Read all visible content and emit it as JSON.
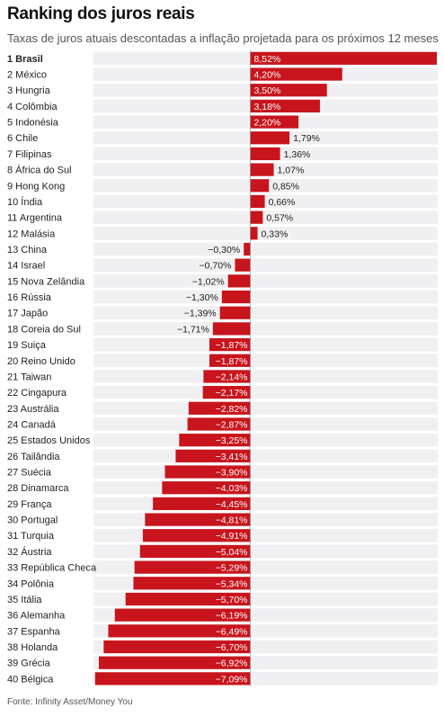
{
  "title": "Ranking dos juros reais",
  "subtitle": "Taxas de juros atuais descontadas a inflação projetada para os próximos 12 meses",
  "source": "Fonte: Infinity Asset/Money You",
  "colors": {
    "bar": "#c8141c",
    "row_stripe": "#f0f0f2",
    "zero_line": "#888888"
  },
  "chart_data": {
    "type": "bar",
    "orientation": "horizontal",
    "title": "Ranking dos juros reais",
    "subtitle": "Taxas de juros atuais descontadas a inflação projetada para os próximos 12 meses",
    "unit": "%",
    "xlim": [
      -7.09,
      8.52
    ],
    "grid": false,
    "categories": [
      "1 Brasil",
      "2 México",
      "3 Hungria",
      "4 Colômbia",
      "5 Indonésia",
      "6 Chile",
      "7 Filipinas",
      "8 África do Sul",
      "9 Hong Kong",
      "10 Índia",
      "11 Argentina",
      "12 Malásia",
      "13 China",
      "14 Israel",
      "15 Nova Zelândia",
      "16 Rússia",
      "17 Japão",
      "18 Coreia do Sul",
      "19 Suiça",
      "20 Reino Unido",
      "21 Taiwan",
      "22 Cingapura",
      "23 Austrália",
      "24 Canadá",
      "25 Estados Unidos",
      "26 Tailândia",
      "27 Suécia",
      "28 Dinamarca",
      "29 França",
      "30 Portugal",
      "31 Turquia",
      "32 Áustria",
      "33 República Checa",
      "34 Polônia",
      "35 Itália",
      "36 Alemanha",
      "37 Espanha",
      "38 Holanda",
      "39 Grécia",
      "40 Bélgica"
    ],
    "values": [
      8.52,
      4.2,
      3.5,
      3.18,
      2.2,
      1.79,
      1.36,
      1.07,
      0.85,
      0.66,
      0.57,
      0.33,
      -0.3,
      -0.7,
      -1.02,
      -1.3,
      -1.39,
      -1.71,
      -1.87,
      -1.87,
      -2.14,
      -2.17,
      -2.82,
      -2.87,
      -3.25,
      -3.41,
      -3.9,
      -4.03,
      -4.45,
      -4.81,
      -4.91,
      -5.04,
      -5.29,
      -5.34,
      -5.7,
      -6.19,
      -6.49,
      -6.7,
      -6.92,
      -7.09
    ],
    "value_labels": [
      "8,52%",
      "4,20%",
      "3,50%",
      "3,18%",
      "2,20%",
      "1,79%",
      "1,36%",
      "1,07%",
      "0,85%",
      "0,66%",
      "0,57%",
      "0,33%",
      "−0,30%",
      "−0,70%",
      "−1,02%",
      "−1,30%",
      "−1,39%",
      "−1,71%",
      "−1,87%",
      "−1,87%",
      "−2,14%",
      "−2,17%",
      "−2,82%",
      "−2,87%",
      "−3,25%",
      "−3,41%",
      "−3,90%",
      "−4,03%",
      "−4,45%",
      "−4,81%",
      "−4,91%",
      "−5,04%",
      "−5,29%",
      "−5,34%",
      "−5,70%",
      "−6,19%",
      "−6,49%",
      "−6,70%",
      "−6,92%",
      "−7,09%"
    ],
    "highlighted": [
      "1 Brasil"
    ]
  }
}
